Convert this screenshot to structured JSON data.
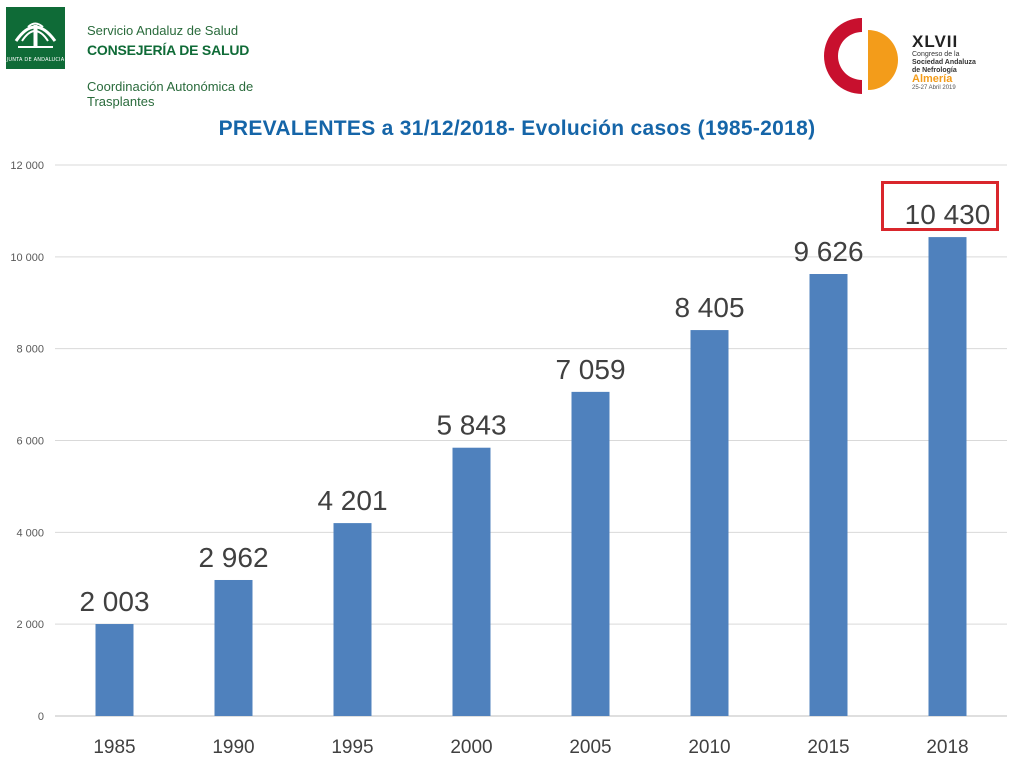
{
  "header": {
    "seal_text": "JUNTA DE ANDALUCIA",
    "org_line1": "Servicio Andaluz de Salud",
    "org_line2": "CONSEJERÍA DE SALUD",
    "org_line3": "Coordinación Autonómica de Trasplantes"
  },
  "congress": {
    "number": "XLVII",
    "line1": "Congreso de la",
    "line2": "Sociedad Andaluza",
    "line3": "de Nefrología",
    "city": "Almería",
    "dates": "25-27 Abril 2019"
  },
  "colors": {
    "bar": "#4f81bd",
    "title": "#1565a8",
    "highlight": "#d9262c",
    "grid": "#d9d9d9"
  },
  "chart_data": {
    "type": "bar",
    "title": "PREVALENTES a 31/12/2018- Evolución casos (1985-2018)",
    "xlabel": "",
    "ylabel": "",
    "categories": [
      "1985",
      "1990",
      "1995",
      "2000",
      "2005",
      "2010",
      "2015",
      "2018"
    ],
    "values": [
      2003,
      2962,
      4201,
      5843,
      7059,
      8405,
      9626,
      10430
    ],
    "data_labels": [
      "2 003",
      "2 962",
      "4 201",
      "5 843",
      "7 059",
      "8 405",
      "9 626",
      "10 430"
    ],
    "y_ticks": [
      0,
      2000,
      4000,
      6000,
      8000,
      10000,
      12000
    ],
    "y_tick_labels": [
      "0",
      "2 000",
      "4 000",
      "6 000",
      "8 000",
      "10 000",
      "12 000"
    ],
    "ylim": [
      0,
      12000
    ],
    "grid": true,
    "legend": "none",
    "highlighted_category": "2018"
  }
}
